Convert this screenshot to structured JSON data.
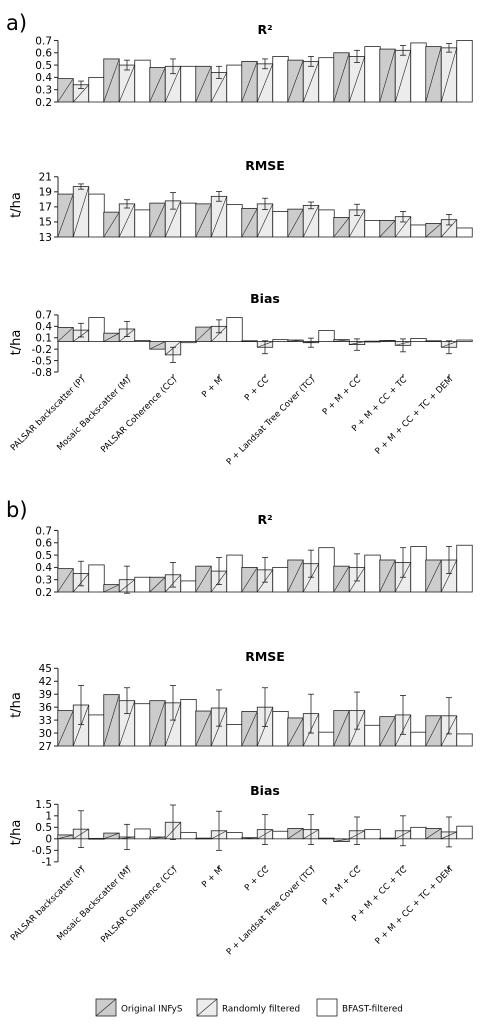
{
  "figure": {
    "legend": [
      {
        "label": "Original INFyS",
        "fill": "#cccccc"
      },
      {
        "label": "Randomly filtered",
        "fill": "#ececec"
      },
      {
        "label": "BFAST-filtered",
        "fill": "#ffffff"
      }
    ],
    "categories": [
      "PALSAR backscatter (P)",
      "Mosaic Backscatter (M)",
      "PALSAR Coherence (CC)",
      "P + M",
      "P + CC",
      "P + Landsat Tree Cover (TC)",
      "P + M + CC",
      "P + M + CC + TC",
      "P + M + CC + TC + DEM"
    ],
    "sections": [
      {
        "label": "a)"
      },
      {
        "label": "b)"
      }
    ]
  },
  "chart_data": [
    {
      "panel": "a)",
      "type": "bar",
      "title": "R²",
      "ylabel": "",
      "yticks": [
        0.2,
        0.3,
        0.4,
        0.5,
        0.6,
        0.7
      ],
      "ylim": [
        0.2,
        0.72
      ],
      "categories": [
        "PALSAR backscatter (P)",
        "Mosaic Backscatter (M)",
        "PALSAR Coherence (CC)",
        "P + M",
        "P + CC",
        "P + Landsat Tree Cover (TC)",
        "P + M + CC",
        "P + M + CC + TC",
        "P + M + CC + TC + DEM"
      ],
      "series": [
        {
          "name": "Original INFyS",
          "values": [
            0.39,
            0.55,
            0.48,
            0.49,
            0.53,
            0.54,
            0.6,
            0.63,
            0.65
          ]
        },
        {
          "name": "Randomly filtered",
          "values": [
            0.34,
            0.5,
            0.49,
            0.44,
            0.51,
            0.53,
            0.57,
            0.62,
            0.64
          ],
          "err": [
            0.03,
            0.04,
            0.06,
            0.05,
            0.04,
            0.04,
            0.05,
            0.04,
            0.035
          ]
        },
        {
          "name": "BFAST-filtered",
          "values": [
            0.4,
            0.54,
            0.49,
            0.5,
            0.57,
            0.56,
            0.65,
            0.68,
            0.7
          ]
        }
      ]
    },
    {
      "panel": "a)",
      "type": "bar",
      "title": "RMSE",
      "ylabel": "t/ha",
      "yticks": [
        13,
        15,
        17,
        19,
        21
      ],
      "ylim": [
        13,
        21.5
      ],
      "categories": [
        "PALSAR backscatter (P)",
        "Mosaic Backscatter (M)",
        "PALSAR Coherence (CC)",
        "P + M",
        "P + CC",
        "P + Landsat Tree Cover (TC)",
        "P + M + CC",
        "P + M + CC + TC",
        "P + M + CC + TC + DEM"
      ],
      "series": [
        {
          "name": "Original INFyS",
          "values": [
            18.7,
            16.3,
            17.5,
            17.4,
            16.8,
            16.7,
            15.6,
            15.2,
            14.8
          ]
        },
        {
          "name": "Randomly filtered",
          "values": [
            19.7,
            17.4,
            17.8,
            18.4,
            17.4,
            17.2,
            16.6,
            15.7,
            15.3
          ],
          "err": [
            0.35,
            0.55,
            1.1,
            0.65,
            0.75,
            0.45,
            0.75,
            0.7,
            0.7
          ]
        },
        {
          "name": "BFAST-filtered",
          "values": [
            18.7,
            16.6,
            17.5,
            17.3,
            16.4,
            16.6,
            15.2,
            14.6,
            14.2
          ]
        }
      ]
    },
    {
      "panel": "a)",
      "type": "bar",
      "title": "Bias",
      "ylabel": "t/ha",
      "yticks": [
        -0.8,
        -0.5,
        -0.2,
        0.1,
        0.4,
        0.7
      ],
      "ylim": [
        -0.8,
        0.75
      ],
      "baseline": 0,
      "categories": [
        "PALSAR backscatter (P)",
        "Mosaic Backscatter (M)",
        "PALSAR Coherence (CC)",
        "P + M",
        "P + CC",
        "P + Landsat Tree Cover (TC)",
        "P + M + CC",
        "P + M + CC + TC",
        "P + M + CC + TC + DEM"
      ],
      "series": [
        {
          "name": "Original INFyS",
          "values": [
            0.37,
            0.22,
            -0.2,
            0.38,
            0.02,
            0.04,
            0.05,
            0.03,
            0.02
          ]
        },
        {
          "name": "Randomly filtered",
          "values": [
            0.3,
            0.33,
            -0.35,
            0.4,
            -0.15,
            -0.03,
            -0.08,
            -0.1,
            -0.15
          ],
          "err": [
            0.18,
            0.2,
            0.2,
            0.17,
            0.17,
            0.12,
            0.15,
            0.17,
            0.17
          ]
        },
        {
          "name": "BFAST-filtered",
          "values": [
            0.63,
            0.03,
            -0.03,
            0.63,
            0.05,
            0.29,
            0.01,
            0.08,
            0.04
          ]
        }
      ]
    },
    {
      "panel": "b)",
      "type": "bar",
      "title": "R²",
      "ylabel": "",
      "yticks": [
        0.2,
        0.3,
        0.4,
        0.5,
        0.6,
        0.7
      ],
      "ylim": [
        0.2,
        0.72
      ],
      "categories": [
        "PALSAR backscatter (P)",
        "Mosaic Backscatter (M)",
        "PALSAR Coherence (CC)",
        "P + M",
        "P + CC",
        "P + Landsat Tree Cover (TC)",
        "P + M + CC",
        "P + M + CC + TC",
        "P + M + CC + TC + DEM"
      ],
      "series": [
        {
          "name": "Original INFyS",
          "values": [
            0.39,
            0.26,
            0.32,
            0.41,
            0.4,
            0.46,
            0.41,
            0.46,
            0.46
          ]
        },
        {
          "name": "Randomly filtered",
          "values": [
            0.35,
            0.3,
            0.34,
            0.37,
            0.38,
            0.43,
            0.4,
            0.44,
            0.46
          ],
          "err": [
            0.1,
            0.11,
            0.1,
            0.11,
            0.1,
            0.11,
            0.11,
            0.12,
            0.11
          ]
        },
        {
          "name": "BFAST-filtered",
          "values": [
            0.42,
            0.32,
            0.29,
            0.5,
            0.4,
            0.56,
            0.5,
            0.57,
            0.58
          ]
        }
      ]
    },
    {
      "panel": "b)",
      "type": "bar",
      "title": "RMSE",
      "ylabel": "t/ha",
      "yticks": [
        27,
        30,
        33,
        36,
        39,
        42,
        45
      ],
      "ylim": [
        27,
        46
      ],
      "categories": [
        "PALSAR backscatter (P)",
        "Mosaic Backscatter (M)",
        "PALSAR Coherence (CC)",
        "P + M",
        "P + CC",
        "P + Landsat Tree Cover (TC)",
        "P + M + CC",
        "P + M + CC + TC",
        "P + M + CC + TC + DEM"
      ],
      "series": [
        {
          "name": "Original INFyS",
          "values": [
            35.2,
            38.9,
            37.5,
            35.1,
            35.0,
            33.5,
            35.2,
            33.8,
            34.0
          ]
        },
        {
          "name": "Randomly filtered",
          "values": [
            36.5,
            37.5,
            37.0,
            35.8,
            36.0,
            34.5,
            35.2,
            34.2,
            34.0
          ],
          "err": [
            4.5,
            3.0,
            4.0,
            4.2,
            4.5,
            4.5,
            4.3,
            4.5,
            4.2
          ]
        },
        {
          "name": "BFAST-filtered",
          "values": [
            34.2,
            36.8,
            37.8,
            32.0,
            35.0,
            30.2,
            31.8,
            30.2,
            29.8
          ]
        }
      ]
    },
    {
      "panel": "b)",
      "type": "bar",
      "title": "Bias",
      "ylabel": "t/ha",
      "yticks": [
        -1.0,
        -0.5,
        0.0,
        0.5,
        1.0,
        1.5
      ],
      "ylim": [
        -1.05,
        1.6
      ],
      "baseline": 0,
      "categories": [
        "PALSAR backscatter (P)",
        "Mosaic Backscatter (M)",
        "PALSAR Coherence (CC)",
        "P + M",
        "P + CC",
        "P + Landsat Tree Cover (TC)",
        "P + M + CC",
        "P + M + CC + TC",
        "P + M + CC + TC + DEM"
      ],
      "series": [
        {
          "name": "Original INFyS",
          "values": [
            0.17,
            0.25,
            0.08,
            0.03,
            0.05,
            0.45,
            -0.12,
            0.03,
            0.45
          ]
        },
        {
          "name": "Randomly filtered",
          "values": [
            0.42,
            0.08,
            0.72,
            0.35,
            0.4,
            0.4,
            0.35,
            0.35,
            0.3
          ],
          "err": [
            0.8,
            0.55,
            0.75,
            0.85,
            0.65,
            0.65,
            0.6,
            0.65,
            0.65
          ]
        },
        {
          "name": "BFAST-filtered",
          "values": [
            0.02,
            0.43,
            0.28,
            0.27,
            0.33,
            0.03,
            0.4,
            0.5,
            0.55
          ]
        }
      ]
    }
  ]
}
